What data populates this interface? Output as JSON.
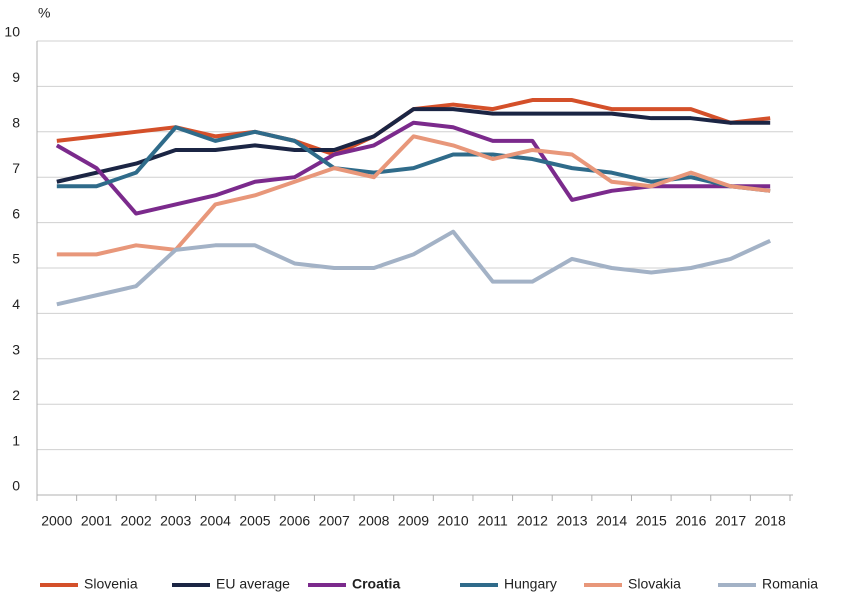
{
  "chart_data": {
    "type": "line",
    "y_label": "%",
    "categories": [
      "2000",
      "2001",
      "2002",
      "2003",
      "2004",
      "2005",
      "2006",
      "2007",
      "2008",
      "2009",
      "2010",
      "2011",
      "2012",
      "2013",
      "2014",
      "2015",
      "2016",
      "2017",
      "2018"
    ],
    "ylim": [
      0,
      10
    ],
    "yticks": [
      0,
      1,
      2,
      3,
      4,
      5,
      6,
      7,
      8,
      9,
      10
    ],
    "grid": true,
    "legend": "bottom",
    "series": [
      {
        "name": "Slovenia",
        "color": "#d4502a",
        "values": [
          7.8,
          7.9,
          8.0,
          8.1,
          7.9,
          8.0,
          7.8,
          7.5,
          7.9,
          8.5,
          8.6,
          8.5,
          8.7,
          8.7,
          8.5,
          8.5,
          8.5,
          8.2,
          8.3
        ]
      },
      {
        "name": "EU average",
        "color": "#1b2544",
        "values": [
          6.9,
          7.1,
          7.3,
          7.6,
          7.6,
          7.7,
          7.6,
          7.6,
          7.9,
          8.5,
          8.5,
          8.4,
          8.4,
          8.4,
          8.4,
          8.3,
          8.3,
          8.2,
          8.2
        ]
      },
      {
        "name": "Croatia",
        "color": "#7b2a8c",
        "bold": true,
        "values": [
          7.7,
          7.2,
          6.2,
          6.4,
          6.6,
          6.9,
          7.0,
          7.5,
          7.7,
          8.2,
          8.1,
          7.8,
          7.8,
          6.5,
          6.7,
          6.8,
          6.8,
          6.8,
          6.8
        ]
      },
      {
        "name": "Hungary",
        "color": "#2f6b8a",
        "values": [
          6.8,
          6.8,
          7.1,
          8.1,
          7.8,
          8.0,
          7.8,
          7.2,
          7.1,
          7.2,
          7.5,
          7.5,
          7.4,
          7.2,
          7.1,
          6.9,
          7.0,
          6.8,
          6.7
        ]
      },
      {
        "name": "Slovakia",
        "color": "#e8977a",
        "values": [
          5.3,
          5.3,
          5.5,
          5.4,
          6.4,
          6.6,
          6.9,
          7.2,
          7.0,
          7.9,
          7.7,
          7.4,
          7.6,
          7.5,
          6.9,
          6.8,
          7.1,
          6.8,
          6.7
        ]
      },
      {
        "name": "Romania",
        "color": "#a3b2c6",
        "values": [
          4.2,
          4.4,
          4.6,
          5.4,
          5.5,
          5.5,
          5.1,
          5.0,
          5.0,
          5.3,
          5.8,
          4.7,
          4.7,
          5.2,
          5.0,
          4.9,
          5.0,
          5.2,
          5.6
        ]
      }
    ]
  }
}
